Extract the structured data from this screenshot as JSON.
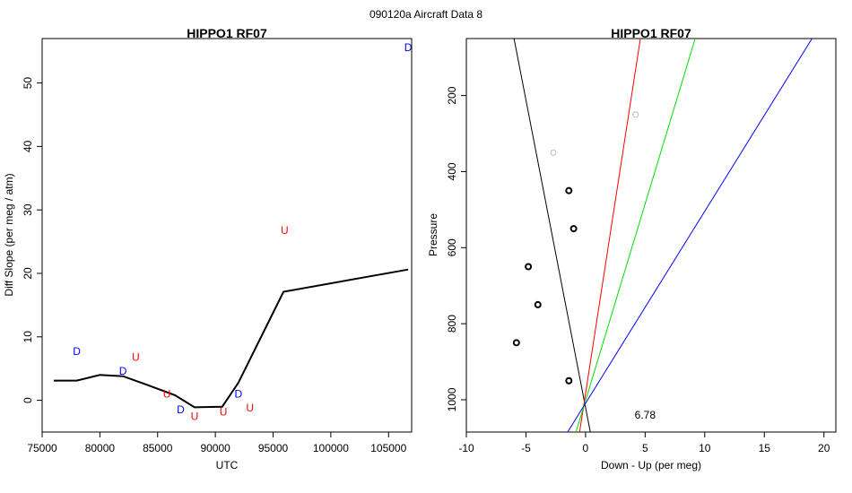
{
  "page_title": "090120a   Aircraft Data 8",
  "colors": {
    "blue": "#0000ff",
    "red": "#ff0000",
    "green": "#00dd00",
    "black": "#000000",
    "gray": "#bbbbbb"
  },
  "chart_data": [
    {
      "type": "line",
      "title": "HIPPO1 RF07",
      "xlabel": "UTC",
      "ylabel": "Diff Slope (per meg / atm)",
      "xlim": [
        75000,
        107000
      ],
      "ylim": [
        -5,
        57
      ],
      "x_ticks": [
        "75000",
        "80000",
        "85000",
        "90000",
        "95000",
        "100000",
        "105000"
      ],
      "x_tick_values": [
        75000,
        80000,
        85000,
        90000,
        95000,
        100000,
        105000
      ],
      "y_ticks": [
        "0",
        "10",
        "20",
        "30",
        "40",
        "50"
      ],
      "y_tick_values": [
        0,
        10,
        20,
        30,
        40,
        50
      ],
      "line": {
        "x": [
          76000,
          78000,
          80000,
          82000,
          84000,
          86500,
          88200,
          90600,
          92000,
          95900,
          106700
        ],
        "y": [
          3.1,
          3.1,
          4.0,
          3.8,
          2.5,
          0.8,
          -1.1,
          -1.0,
          2.8,
          17.1,
          20.6
        ]
      },
      "point_labels": [
        {
          "label": "D",
          "x": 78000,
          "y": 7.7,
          "color": "blue"
        },
        {
          "label": "D",
          "x": 82000,
          "y": 4.6,
          "color": "blue"
        },
        {
          "label": "U",
          "x": 83100,
          "y": 6.8,
          "color": "red"
        },
        {
          "label": "U",
          "x": 85800,
          "y": 1.0,
          "color": "red"
        },
        {
          "label": "D",
          "x": 87000,
          "y": -1.5,
          "color": "blue"
        },
        {
          "label": "U",
          "x": 88200,
          "y": -2.5,
          "color": "red"
        },
        {
          "label": "U",
          "x": 90700,
          "y": -1.8,
          "color": "red"
        },
        {
          "label": "D",
          "x": 92000,
          "y": 1.0,
          "color": "blue"
        },
        {
          "label": "U",
          "x": 93000,
          "y": -1.2,
          "color": "red"
        },
        {
          "label": "U",
          "x": 96000,
          "y": 26.8,
          "color": "red"
        },
        {
          "label": "D",
          "x": 106700,
          "y": 55.6,
          "color": "blue"
        }
      ]
    },
    {
      "type": "scatter",
      "title": "HIPPO1 RF07",
      "xlabel": "Down - Up (per meg)",
      "ylabel": "Pressure",
      "xlim": [
        -10,
        21
      ],
      "ylim": [
        1085,
        50
      ],
      "y_reversed": true,
      "x_ticks": [
        "-10",
        "-5",
        "0",
        "5",
        "10",
        "15",
        "20"
      ],
      "x_tick_values": [
        -10,
        -5,
        0,
        5,
        10,
        15,
        20
      ],
      "y_ticks": [
        "200",
        "400",
        "600",
        "800",
        "1000"
      ],
      "y_tick_values": [
        200,
        400,
        600,
        800,
        1000
      ],
      "points": [
        {
          "x": -1.4,
          "y": 450,
          "color": "black"
        },
        {
          "x": -1.0,
          "y": 550,
          "color": "black"
        },
        {
          "x": -4.8,
          "y": 650,
          "color": "black"
        },
        {
          "x": -4.0,
          "y": 750,
          "color": "black"
        },
        {
          "x": -5.8,
          "y": 850,
          "color": "black"
        },
        {
          "x": -1.4,
          "y": 950,
          "color": "black"
        },
        {
          "x": -2.7,
          "y": 350,
          "color": "gray"
        },
        {
          "x": 4.2,
          "y": 250,
          "color": "gray"
        }
      ],
      "lines": [
        {
          "color": "black",
          "x": [
            -6.0,
            0.4
          ],
          "y": [
            50,
            1085
          ]
        },
        {
          "color": "red",
          "x": [
            4.6,
            -0.5
          ],
          "y": [
            50,
            1085
          ]
        },
        {
          "color": "green",
          "x": [
            9.2,
            -0.8
          ],
          "y": [
            50,
            1085
          ]
        },
        {
          "color": "blue",
          "x": [
            19.0,
            -1.5
          ],
          "y": [
            50,
            1085
          ]
        }
      ],
      "annotation": {
        "text": "6.78",
        "x": 5.0,
        "y": 1040
      }
    }
  ]
}
